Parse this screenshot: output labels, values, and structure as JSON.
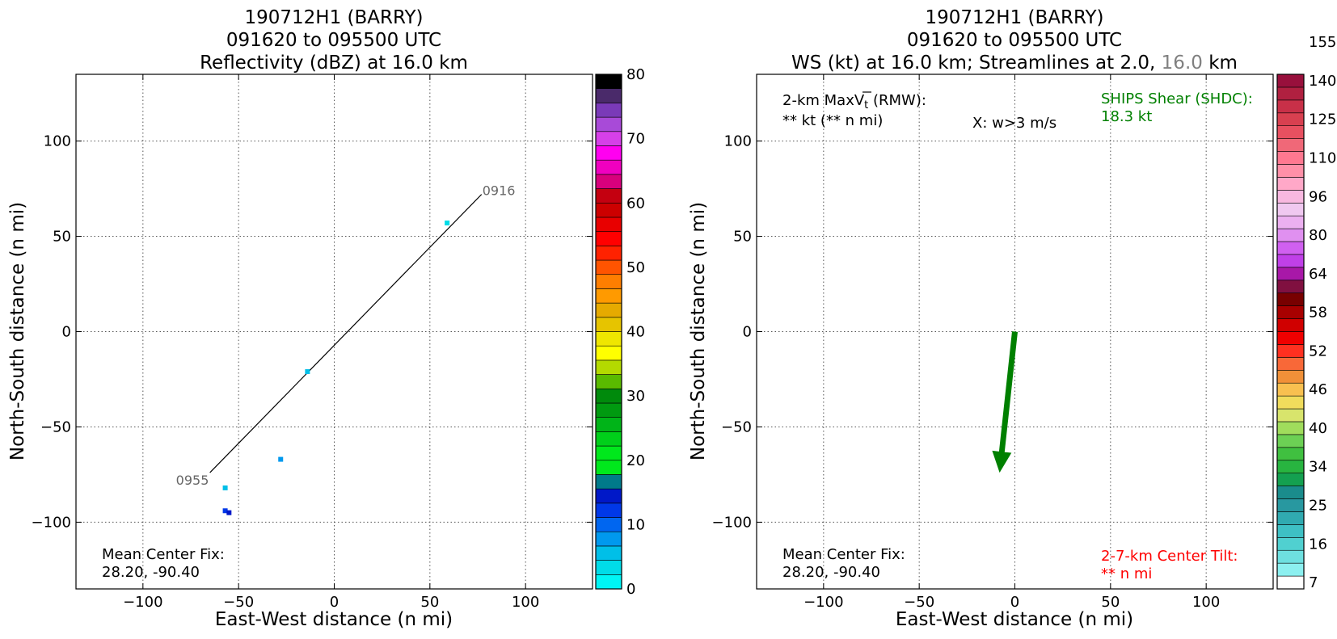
{
  "left": {
    "title": [
      "190712H1 (BARRY)",
      "091620 to 095500 UTC",
      "Reflectivity (dBZ) at 16.0 km"
    ],
    "xlabel": "East-West distance (n mi)",
    "ylabel": "North-South distance (n mi)",
    "center_fix": [
      "Mean Center Fix:",
      "28.20, -90.40"
    ],
    "flight_labels": {
      "start": "0916",
      "end": "0955"
    },
    "colorbar": {
      "ticks": [
        "0",
        "10",
        "20",
        "30",
        "40",
        "50",
        "60",
        "70",
        "80"
      ],
      "colors": [
        "#00f5f5",
        "#00dce8",
        "#00bfe8",
        "#0099ee",
        "#0066f0",
        "#0038e8",
        "#0018c8",
        "#007a8a",
        "#00e81c",
        "#00e81c",
        "#00cf1a",
        "#00b418",
        "#009a10",
        "#008a0c",
        "#5aba00",
        "#b4da00",
        "#ffff00",
        "#efe600",
        "#e6c400",
        "#e6aa00",
        "#ff9a00",
        "#ff7e00",
        "#ff5400",
        "#ff2200",
        "#ff0000",
        "#e80000",
        "#cc0000",
        "#c40010",
        "#d8007c",
        "#f000c0",
        "#ff00f0",
        "#d640e8",
        "#a84ad8",
        "#7a3ab8",
        "#4a2a6a",
        "#000000"
      ]
    }
  },
  "right": {
    "title": [
      "190712H1 (BARRY)",
      "091620 to 095500 UTC"
    ],
    "title3": {
      "main": "WS (kt) at 16.0 km; Streamlines at 2.0, ",
      "grey": "16.0",
      "unit": " km"
    },
    "xlabel": "East-West distance (n mi)",
    "ylabel": "North-South distance (n mi)",
    "maxvt_label": "2-km MaxV",
    "maxvt_sub": "t",
    "maxvt_rest": " (RMW):",
    "maxvt_value": "** kt (** n mi)",
    "w_label": "X: w>3 m/s",
    "ships_label": "SHIPS Shear (SHDC):",
    "ships_value": "18.3 kt",
    "tilt_label": "2-7-km Center Tilt:",
    "tilt_value": "** n mi",
    "center_fix": [
      "Mean Center Fix:",
      "28.20, -90.40"
    ],
    "colorbar": {
      "ticks": [
        "7",
        "16",
        "25",
        "34",
        "40",
        "46",
        "52",
        "58",
        "64",
        "80",
        "96",
        "110",
        "125",
        "140",
        "155"
      ],
      "colors": [
        "#ffffff",
        "#8cf0f0",
        "#6ee0e0",
        "#50d0d0",
        "#3ec0c4",
        "#30aab0",
        "#2898a0",
        "#1a8c8c",
        "#14a050",
        "#28b440",
        "#40c040",
        "#6cd054",
        "#a0dc5c",
        "#d8e46c",
        "#f0dc5c",
        "#f8c050",
        "#f09038",
        "#f86838",
        "#ff3020",
        "#f00000",
        "#d00000",
        "#a80000",
        "#780000",
        "#801040",
        "#a818a8",
        "#c040e8",
        "#d060f0",
        "#e090f0",
        "#ecb0f0",
        "#f0c8f0",
        "#f8b8e0",
        "#ffa8c8",
        "#ff90a8",
        "#ff7890",
        "#f06878",
        "#e85060",
        "#d84050",
        "#c83048",
        "#b02040",
        "#98103c"
      ]
    }
  },
  "chart_data": [
    {
      "type": "scatter",
      "title": "190712H1 (BARRY) 091620 to 095500 UTC Reflectivity (dBZ) at 16.0 km",
      "xlabel": "East-West distance (n mi)",
      "ylabel": "North-South distance (n mi)",
      "xlim": [
        -135,
        135
      ],
      "ylim": [
        -135,
        135
      ],
      "xticks": [
        -100,
        -50,
        0,
        50,
        100
      ],
      "yticks": [
        -100,
        -50,
        0,
        50,
        100
      ],
      "grid": true,
      "flight_track": [
        [
          77,
          72
        ],
        [
          -65,
          -74
        ]
      ],
      "reflectivity_points": [
        {
          "x": 59,
          "y": 57,
          "dbz": 3
        },
        {
          "x": -14,
          "y": -21,
          "dbz": 6
        },
        {
          "x": -28,
          "y": -67,
          "dbz": 8
        },
        {
          "x": -57,
          "y": -82,
          "dbz": 6
        },
        {
          "x": -57,
          "y": -94,
          "dbz": 13
        },
        {
          "x": -55,
          "y": -95,
          "dbz": 14
        }
      ]
    },
    {
      "type": "scatter",
      "title": "190712H1 (BARRY) 091620 to 095500 UTC WS (kt) at 16.0 km; Streamlines at 2.0, 16.0 km",
      "xlabel": "East-West distance (n mi)",
      "ylabel": "North-South distance (n mi)",
      "xlim": [
        -135,
        135
      ],
      "ylim": [
        -135,
        135
      ],
      "xticks": [
        -100,
        -50,
        0,
        50,
        100
      ],
      "yticks": [
        -100,
        -50,
        0,
        50,
        100
      ],
      "grid": true,
      "shear_vector": {
        "from": [
          0,
          0
        ],
        "to": [
          -8,
          -74
        ],
        "magnitude_kt": 18.3
      }
    }
  ]
}
